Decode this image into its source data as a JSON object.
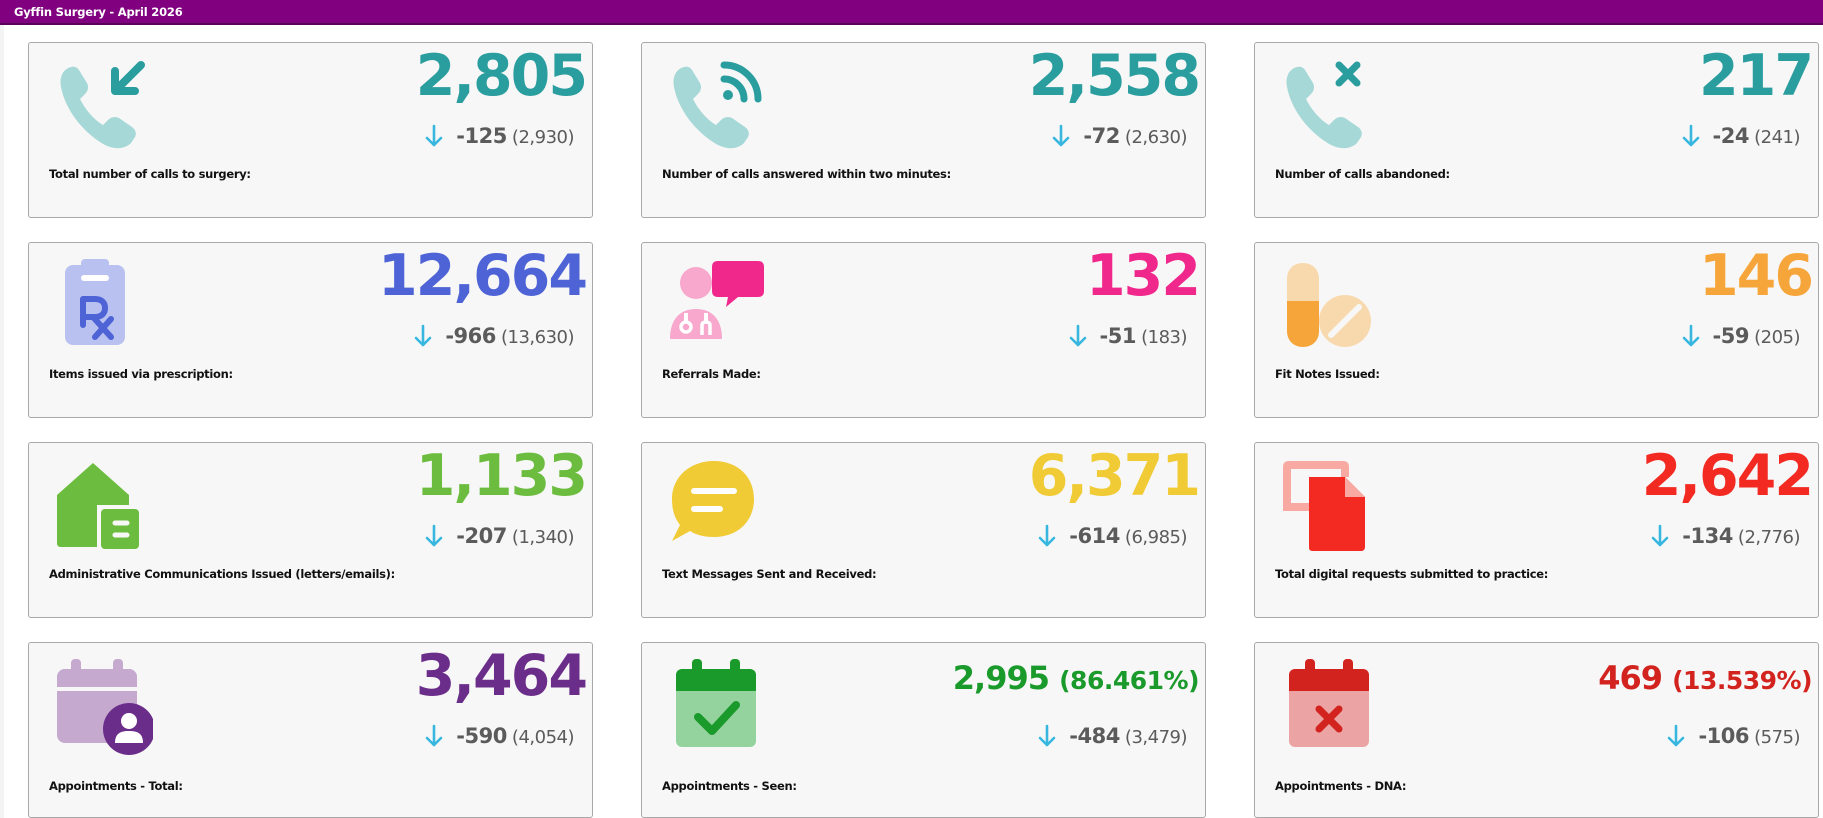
{
  "header": {
    "title": "Gyffin Surgery - April 2026",
    "background": "#800080"
  },
  "colors": {
    "teal": "#2a9d9f",
    "tealLight": "#a7d8d8",
    "blue": "#4e63d6",
    "blueLight": "#b9c1f0",
    "pink": "#f0288c",
    "pinkLight": "#f7a8cc",
    "orange": "#f6a53a",
    "orangeLight": "#f8d9ad",
    "green": "#6cbd3f",
    "yellow": "#f0cb35",
    "red": "#f22a22",
    "redLight": "#f8a9a2",
    "purple": "#6b2d8a",
    "purpleLight": "#c5a9cf",
    "darkGreen": "#1b9a2c",
    "darkRed": "#d2231e",
    "arrow": "#37b7e0",
    "deltaText": "#5b5b5b"
  },
  "cards": [
    {
      "label": "Total number of calls to surgery:",
      "value": "2,805",
      "delta": "-125",
      "previous": "(2,930)",
      "icon": "phone-incoming-icon",
      "color": "#2a9d9f"
    },
    {
      "label": "Number of calls answered within two minutes:",
      "value": "2,558",
      "delta": "-72",
      "previous": "(2,630)",
      "icon": "phone-answered-icon",
      "color": "#2a9d9f"
    },
    {
      "label": "Number of calls abandoned:",
      "value": "217",
      "delta": "-24",
      "previous": "(241)",
      "icon": "phone-abandoned-icon",
      "color": "#2a9d9f"
    },
    {
      "label": "Items issued via prescription:",
      "value": "12,664",
      "delta": "-966",
      "previous": "(13,630)",
      "icon": "prescription-clipboard-icon",
      "color": "#4e63d6"
    },
    {
      "label": "Referrals Made:",
      "value": "132",
      "delta": "-51",
      "previous": "(183)",
      "icon": "doctor-referral-icon",
      "color": "#f0288c"
    },
    {
      "label": "Fit Notes Issued:",
      "value": "146",
      "delta": "-59",
      "previous": "(205)",
      "icon": "pills-icon",
      "color": "#f6a53a"
    },
    {
      "label": "Administrative Communications Issued (letters/emails):",
      "value": "1,133",
      "delta": "-207",
      "previous": "(1,340)",
      "icon": "house-letter-icon",
      "color": "#6cbd3f"
    },
    {
      "label": "Text Messages Sent and Received:",
      "value": "6,371",
      "delta": "-614",
      "previous": "(6,985)",
      "icon": "chat-bubble-icon",
      "color": "#f0cb35"
    },
    {
      "label": "Total digital requests submitted to practice:",
      "value": "2,642",
      "delta": "-134",
      "previous": "(2,776)",
      "icon": "digital-request-icon",
      "color": "#f22a22"
    },
    {
      "label": "Appointments - Total:",
      "value": "3,464",
      "percent": "",
      "delta": "-590",
      "previous": "(4,054)",
      "icon": "calendar-user-icon",
      "color": "#6b2d8a"
    },
    {
      "label": "Appointments - Seen:",
      "value": "2,995",
      "percent": "(86.461%)",
      "delta": "-484",
      "previous": "(3,479)",
      "icon": "calendar-check-icon",
      "color": "#1b9a2c"
    },
    {
      "label": "Appointments - DNA:",
      "value": "469",
      "percent": "(13.539%)",
      "delta": "-106",
      "previous": "(575)",
      "icon": "calendar-cross-icon",
      "color": "#d2231e"
    }
  ]
}
